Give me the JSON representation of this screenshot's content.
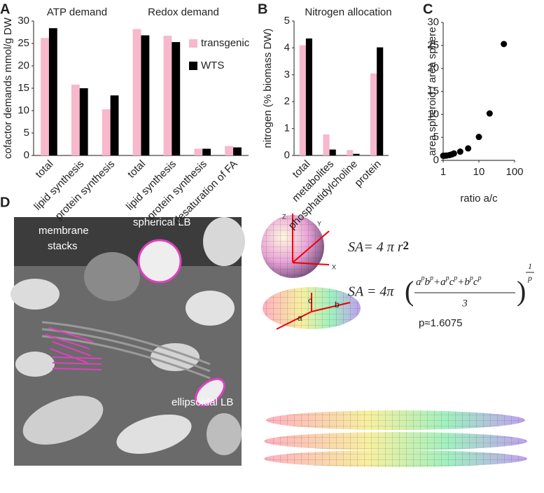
{
  "chart_data": [
    {
      "type": "bar",
      "panel_label": "A",
      "annotations": [
        "ATP demand",
        "Redox demand"
      ],
      "y_label": "cofactor demands mmol/g DW",
      "categories": [
        "total",
        "lipid  synthesis",
        "protein  synthesis",
        "total",
        "lipid  synthesis",
        "protein  synthesis",
        "desaturation of FA"
      ],
      "series": [
        {
          "name": "transgenic",
          "color": "#f7b8cc",
          "values": [
            26.2,
            15.8,
            10.3,
            28.2,
            26.7,
            1.5,
            2.1
          ]
        },
        {
          "name": "WTS",
          "color": "#000000",
          "values": [
            28.4,
            15.0,
            13.4,
            26.8,
            25.3,
            1.5,
            1.8
          ]
        }
      ],
      "ylim": [
        0,
        30
      ],
      "yticks": [
        0,
        5,
        10,
        15,
        20,
        25,
        30
      ],
      "legend": "upper right"
    },
    {
      "type": "bar",
      "panel_label": "B",
      "title": "Nitrogen allocation",
      "y_label": "nitrogen (% biomass DW)",
      "categories": [
        "total",
        "metabolites",
        "phosphatidylcholine",
        "protein"
      ],
      "series": [
        {
          "name": "transgenic",
          "color": "#f7b8cc",
          "values": [
            4.1,
            0.78,
            0.2,
            3.05
          ]
        },
        {
          "name": "WTS",
          "color": "#000000",
          "values": [
            4.35,
            0.22,
            0.06,
            4.02
          ]
        }
      ],
      "ylim": [
        0,
        5
      ],
      "yticks": [
        0,
        1,
        2,
        3,
        4,
        5
      ]
    },
    {
      "type": "scatter",
      "panel_label": "C",
      "x_label": "ratio a/c",
      "y_label": "area spheroid / area sphere",
      "x": [
        1,
        1.1,
        1.25,
        1.5,
        1.75,
        2,
        3,
        5,
        10,
        20,
        50
      ],
      "values": [
        1,
        1,
        1.05,
        1.15,
        1.3,
        1.5,
        1.9,
        2.6,
        5.1,
        10.2,
        25.3
      ],
      "color": "#000000",
      "x_log": true,
      "xlim": [
        1,
        100
      ],
      "xticks": [
        1,
        10,
        100
      ],
      "ylim": [
        0,
        30
      ],
      "yticks": [
        0,
        5,
        10,
        15,
        20,
        25,
        30
      ]
    }
  ],
  "panel_d": {
    "panel_label": "D",
    "membrane_stacks": [
      "membrane",
      "stacks"
    ],
    "spherical": "spherical LB",
    "ellipsoidal": "ellipsoidal LB",
    "sphere_axes": [
      "Z",
      "Y",
      "X"
    ],
    "spheroid_axes": [
      "a",
      "c",
      "b"
    ],
    "formula1": {
      "lhs": "SA",
      "rhs": "= 4 π r",
      "exp": "2"
    },
    "formula2": {
      "lhs": "SA = 4π",
      "numerator": [
        {
          "t": "a"
        },
        {
          "t": "p",
          "sup": true
        },
        {
          "t": "b"
        },
        {
          "t": "p",
          "sup": true
        },
        {
          "t": "+a"
        },
        {
          "t": "p",
          "sup": true
        },
        {
          "t": "c"
        },
        {
          "t": "p",
          "sup": true
        },
        {
          "t": "+b"
        },
        {
          "t": "p",
          "sup": true
        },
        {
          "t": "c"
        },
        {
          "t": "p",
          "sup": true
        }
      ],
      "denominator": "3",
      "exp_num": "1",
      "exp_den": "p"
    },
    "p_value": "p≈1.6075"
  }
}
